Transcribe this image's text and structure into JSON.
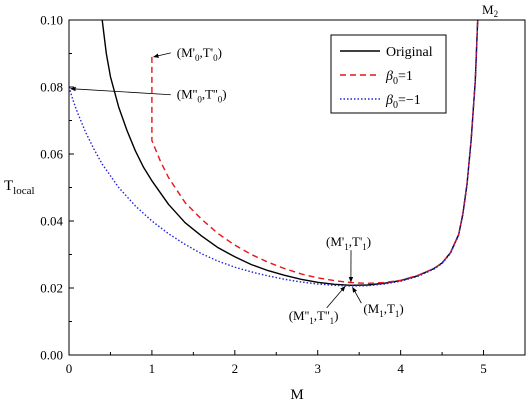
{
  "chart_data": {
    "type": "line",
    "xlabel": "M",
    "ylabel": "T",
    "ylabel_sub": "local",
    "xlim": [
      0,
      5.5
    ],
    "ylim": [
      0,
      0.1
    ],
    "xticks": [
      "0",
      "1",
      "2",
      "3",
      "4",
      "5"
    ],
    "yticks": [
      "0.00",
      "0.02",
      "0.04",
      "0.06",
      "0.08",
      "0.10"
    ],
    "legend_position": "top-right",
    "series": [
      {
        "name": "Original",
        "color": "#000000",
        "dash": "solid",
        "points": [
          [
            0.4,
            0.1
          ],
          [
            0.45,
            0.09
          ],
          [
            0.5,
            0.083
          ],
          [
            0.6,
            0.074
          ],
          [
            0.7,
            0.067
          ],
          [
            0.8,
            0.061
          ],
          [
            0.9,
            0.056
          ],
          [
            1.0,
            0.052
          ],
          [
            1.2,
            0.045
          ],
          [
            1.4,
            0.0395
          ],
          [
            1.6,
            0.0355
          ],
          [
            1.8,
            0.032
          ],
          [
            2.0,
            0.0293
          ],
          [
            2.2,
            0.027
          ],
          [
            2.4,
            0.0252
          ],
          [
            2.6,
            0.0238
          ],
          [
            2.8,
            0.0226
          ],
          [
            3.0,
            0.0217
          ],
          [
            3.2,
            0.0211
          ],
          [
            3.4,
            0.0208
          ],
          [
            3.6,
            0.0209
          ],
          [
            3.8,
            0.0214
          ],
          [
            4.0,
            0.0222
          ],
          [
            4.2,
            0.0236
          ],
          [
            4.4,
            0.0258
          ],
          [
            4.5,
            0.0275
          ],
          [
            4.6,
            0.0305
          ],
          [
            4.7,
            0.036
          ],
          [
            4.75,
            0.042
          ],
          [
            4.8,
            0.051
          ],
          [
            4.85,
            0.064
          ],
          [
            4.9,
            0.082
          ],
          [
            4.93,
            0.1
          ]
        ]
      },
      {
        "name": "β0=1",
        "legend_symbol": "β",
        "legend_sub": "0",
        "legend_suffix": "=1",
        "color": "#e8141a",
        "dash": "6,4",
        "points": [
          [
            1.0,
            0.089
          ],
          [
            1.0,
            0.064
          ],
          [
            1.1,
            0.058
          ],
          [
            1.2,
            0.053
          ],
          [
            1.4,
            0.0455
          ],
          [
            1.6,
            0.0405
          ],
          [
            1.8,
            0.0362
          ],
          [
            2.0,
            0.0328
          ],
          [
            2.2,
            0.03
          ],
          [
            2.4,
            0.0277
          ],
          [
            2.6,
            0.0258
          ],
          [
            2.8,
            0.0242
          ],
          [
            3.0,
            0.023
          ],
          [
            3.2,
            0.0222
          ],
          [
            3.4,
            0.0216
          ],
          [
            3.6,
            0.0214
          ],
          [
            3.8,
            0.0216
          ],
          [
            4.0,
            0.0223
          ],
          [
            4.2,
            0.0237
          ],
          [
            4.4,
            0.0258
          ],
          [
            4.5,
            0.0275
          ],
          [
            4.6,
            0.0305
          ],
          [
            4.7,
            0.036
          ],
          [
            4.75,
            0.042
          ],
          [
            4.8,
            0.051
          ],
          [
            4.85,
            0.064
          ],
          [
            4.9,
            0.082
          ],
          [
            4.93,
            0.1
          ]
        ]
      },
      {
        "name": "β0=−1",
        "legend_symbol": "β",
        "legend_sub": "0",
        "legend_suffix": "=−1",
        "color": "#2323d6",
        "dash": "1.5,2",
        "points": [
          [
            0.0,
            0.08
          ],
          [
            0.05,
            0.076
          ],
          [
            0.1,
            0.0725
          ],
          [
            0.2,
            0.0665
          ],
          [
            0.3,
            0.0615
          ],
          [
            0.4,
            0.057
          ],
          [
            0.6,
            0.05
          ],
          [
            0.8,
            0.0445
          ],
          [
            1.0,
            0.04
          ],
          [
            1.2,
            0.0362
          ],
          [
            1.4,
            0.033
          ],
          [
            1.6,
            0.0302
          ],
          [
            1.8,
            0.028
          ],
          [
            2.0,
            0.0262
          ],
          [
            2.2,
            0.0248
          ],
          [
            2.4,
            0.0236
          ],
          [
            2.6,
            0.0226
          ],
          [
            2.8,
            0.0218
          ],
          [
            3.0,
            0.0212
          ],
          [
            3.2,
            0.0208
          ],
          [
            3.4,
            0.0206
          ],
          [
            3.6,
            0.0207
          ],
          [
            3.8,
            0.0212
          ],
          [
            4.0,
            0.022
          ],
          [
            4.2,
            0.0234
          ],
          [
            4.4,
            0.0256
          ],
          [
            4.5,
            0.0273
          ],
          [
            4.6,
            0.0303
          ],
          [
            4.7,
            0.0358
          ],
          [
            4.75,
            0.0418
          ],
          [
            4.8,
            0.0508
          ],
          [
            4.85,
            0.0638
          ],
          [
            4.9,
            0.0818
          ],
          [
            4.93,
            0.1
          ]
        ]
      }
    ],
    "annotations": [
      {
        "id": "m0p",
        "text": "(M'0,T'0)",
        "base1": "(M'",
        "sub1": "0",
        "base2": ",T'",
        "sub2": "0",
        "close": ")",
        "point": [
          1.02,
          0.089
        ],
        "label": [
          1.3,
          0.089
        ]
      },
      {
        "id": "m0pp",
        "text": "(M''0,T''0)",
        "base1": "(M''",
        "sub1": "0",
        "base2": ",T''",
        "sub2": "0",
        "close": ")",
        "point": [
          0.02,
          0.0795
        ],
        "label": [
          1.3,
          0.0765
        ]
      },
      {
        "id": "m1p",
        "text": "(M'1,T'1)",
        "base1": "(M'",
        "sub1": "1",
        "base2": ",T'",
        "sub2": "1",
        "close": ")",
        "point": [
          3.4,
          0.0218
        ],
        "label": [
          3.1,
          0.0325
        ]
      },
      {
        "id": "m1pp",
        "text": "(M''1,T''1)",
        "base1": "(M''",
        "sub1": "1",
        "base2": ",T''",
        "sub2": "1",
        "close": ")",
        "point": [
          3.33,
          0.0205
        ],
        "label": [
          2.65,
          0.0105
        ]
      },
      {
        "id": "m1",
        "text": "(M1,T1)",
        "base1": "(M",
        "sub1": "1",
        "base2": ",T",
        "sub2": "1",
        "close": ")",
        "point": [
          3.42,
          0.0202
        ],
        "label": [
          3.55,
          0.0125
        ]
      }
    ],
    "top_label": {
      "base": "M",
      "sub": "2"
    }
  }
}
